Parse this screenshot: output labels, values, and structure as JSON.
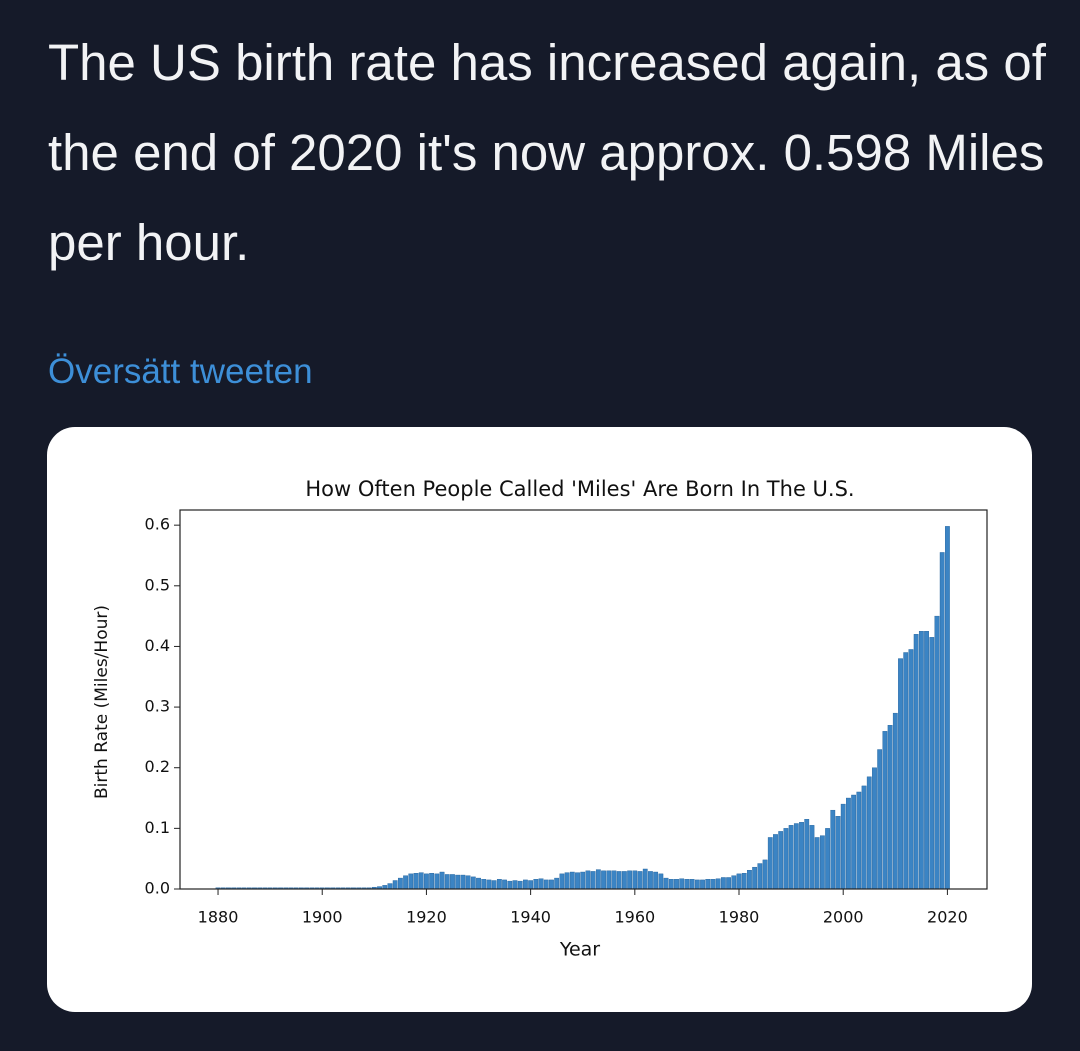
{
  "tweet": {
    "text": "The US birth rate has increased again, as of the end of 2020 it's now approx. 0.598 Miles per hour.",
    "translate_link": "Översätt tweeten"
  },
  "chart_data": {
    "type": "bar",
    "title": "How Often People Called 'Miles' Are Born In The U.S.",
    "xlabel": "Year",
    "ylabel": "Birth Rate (Miles/Hour)",
    "color": "#3b84c4",
    "x": [
      1880,
      1881,
      1882,
      1883,
      1884,
      1885,
      1886,
      1887,
      1888,
      1889,
      1890,
      1891,
      1892,
      1893,
      1894,
      1895,
      1896,
      1897,
      1898,
      1899,
      1900,
      1901,
      1902,
      1903,
      1904,
      1905,
      1906,
      1907,
      1908,
      1909,
      1910,
      1911,
      1912,
      1913,
      1914,
      1915,
      1916,
      1917,
      1918,
      1919,
      1920,
      1921,
      1922,
      1923,
      1924,
      1925,
      1926,
      1927,
      1928,
      1929,
      1930,
      1931,
      1932,
      1933,
      1934,
      1935,
      1936,
      1937,
      1938,
      1939,
      1940,
      1941,
      1942,
      1943,
      1944,
      1945,
      1946,
      1947,
      1948,
      1949,
      1950,
      1951,
      1952,
      1953,
      1954,
      1955,
      1956,
      1957,
      1958,
      1959,
      1960,
      1961,
      1962,
      1963,
      1964,
      1965,
      1966,
      1967,
      1968,
      1969,
      1970,
      1971,
      1972,
      1973,
      1974,
      1975,
      1976,
      1977,
      1978,
      1979,
      1980,
      1981,
      1982,
      1983,
      1984,
      1985,
      1986,
      1987,
      1988,
      1989,
      1990,
      1991,
      1992,
      1993,
      1994,
      1995,
      1996,
      1997,
      1998,
      1999,
      2000,
      2001,
      2002,
      2003,
      2004,
      2005,
      2006,
      2007,
      2008,
      2009,
      2010,
      2011,
      2012,
      2013,
      2014,
      2015,
      2016,
      2017,
      2018,
      2019,
      2020
    ],
    "values": [
      0.002,
      0.002,
      0.002,
      0.002,
      0.002,
      0.002,
      0.002,
      0.002,
      0.002,
      0.002,
      0.002,
      0.002,
      0.002,
      0.002,
      0.002,
      0.002,
      0.002,
      0.002,
      0.002,
      0.002,
      0.002,
      0.002,
      0.002,
      0.002,
      0.002,
      0.002,
      0.002,
      0.002,
      0.002,
      0.002,
      0.003,
      0.004,
      0.006,
      0.009,
      0.014,
      0.018,
      0.022,
      0.025,
      0.026,
      0.027,
      0.025,
      0.026,
      0.025,
      0.028,
      0.024,
      0.024,
      0.023,
      0.023,
      0.022,
      0.02,
      0.018,
      0.016,
      0.015,
      0.014,
      0.016,
      0.015,
      0.013,
      0.014,
      0.013,
      0.015,
      0.014,
      0.016,
      0.017,
      0.015,
      0.015,
      0.018,
      0.025,
      0.027,
      0.028,
      0.027,
      0.028,
      0.03,
      0.029,
      0.032,
      0.03,
      0.03,
      0.03,
      0.029,
      0.029,
      0.03,
      0.03,
      0.029,
      0.033,
      0.029,
      0.028,
      0.025,
      0.018,
      0.016,
      0.016,
      0.017,
      0.016,
      0.016,
      0.015,
      0.015,
      0.016,
      0.016,
      0.017,
      0.019,
      0.019,
      0.022,
      0.025,
      0.026,
      0.031,
      0.036,
      0.042,
      0.048,
      0.085,
      0.09,
      0.095,
      0.1,
      0.105,
      0.108,
      0.11,
      0.115,
      0.105,
      0.085,
      0.088,
      0.1,
      0.13,
      0.12,
      0.14,
      0.15,
      0.155,
      0.16,
      0.17,
      0.185,
      0.2,
      0.23,
      0.26,
      0.27,
      0.29,
      0.38,
      0.39,
      0.395,
      0.42,
      0.425,
      0.425,
      0.415,
      0.45,
      0.555,
      0.598
    ],
    "xlim": [
      1872.7,
      2027.6
    ],
    "xticks": [
      1880,
      1900,
      1920,
      1940,
      1960,
      1980,
      2000,
      2020
    ],
    "ylim": [
      0,
      0.625
    ],
    "yticks": [
      {
        "value": 0,
        "label": "0.0"
      },
      0.1,
      0.2,
      0.3,
      0.4,
      0.5,
      0.6
    ]
  }
}
